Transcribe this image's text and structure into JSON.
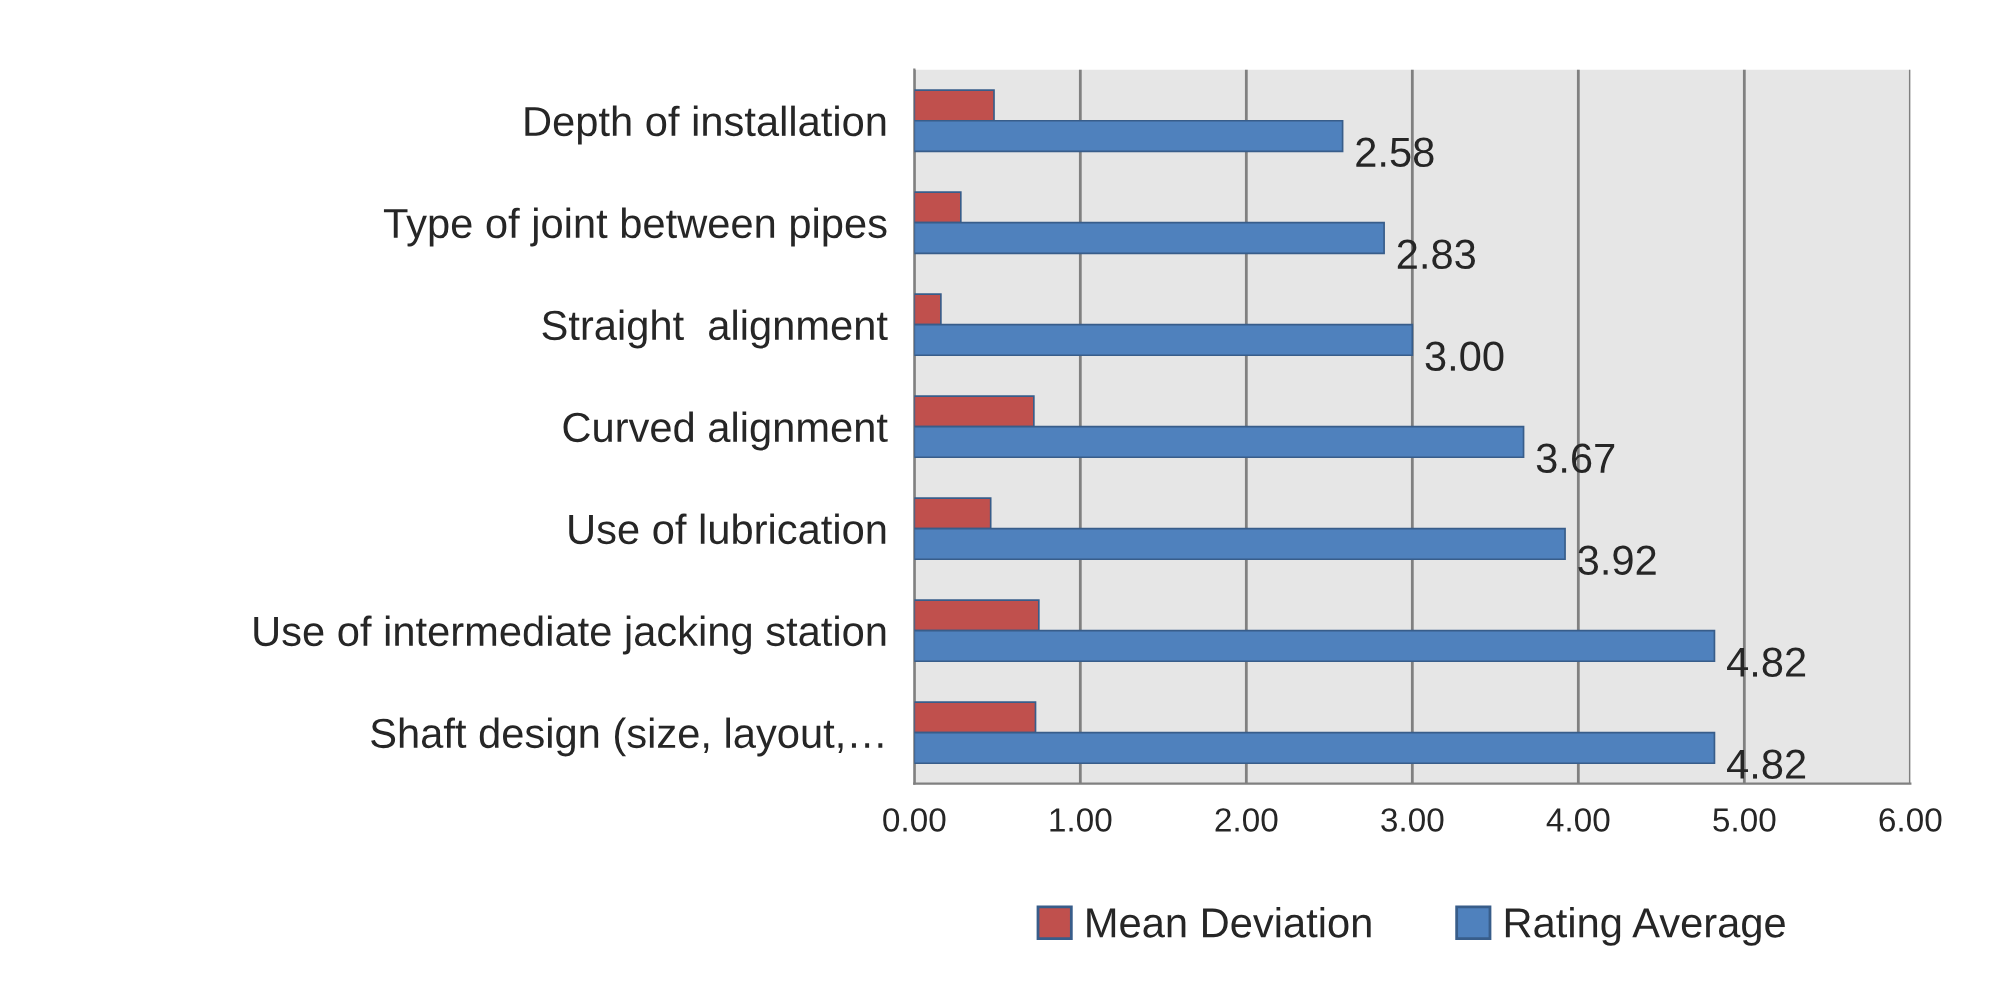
{
  "chart_data": {
    "type": "bar",
    "orientation": "horizontal",
    "categories": [
      "Depth of installation",
      "Type of joint between pipes",
      "Straight  alignment",
      "Curved alignment",
      "Use of lubrication",
      "Use of intermediate jacking station",
      "Shaft design (size, layout,…"
    ],
    "series": [
      {
        "name": "Mean Deviation",
        "color": "#c0504d",
        "values": [
          0.48,
          0.28,
          0.16,
          0.72,
          0.46,
          0.75,
          0.73
        ]
      },
      {
        "name": "Rating Average",
        "color": "#4f81bd",
        "values": [
          2.58,
          2.83,
          3.0,
          3.67,
          3.92,
          4.82,
          4.82
        ],
        "value_labels": [
          "2.58",
          "2.83",
          "3.00",
          "3.67",
          "3.92",
          "4.82",
          "4.82"
        ]
      }
    ],
    "xlim": [
      0,
      6
    ],
    "xticks": [
      {
        "value": 0,
        "label": "0.00"
      },
      {
        "value": 1,
        "label": "1.00"
      },
      {
        "value": 2,
        "label": "2.00"
      },
      {
        "value": 3,
        "label": "3.00"
      },
      {
        "value": 4,
        "label": "4.00"
      },
      {
        "value": 5,
        "label": "5.00"
      },
      {
        "value": 6,
        "label": "6.00"
      }
    ],
    "grid": "x",
    "legend": "bottom"
  }
}
